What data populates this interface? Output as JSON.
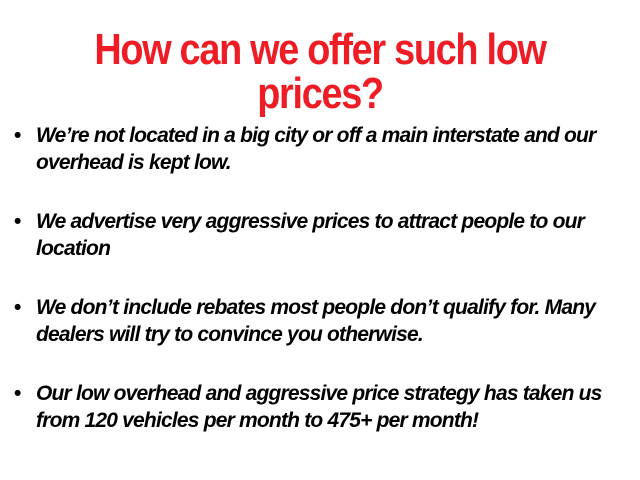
{
  "title": "How can we offer such low prices?",
  "bullets": [
    "We’re not located in a big city or off a main interstate and our overhead is kept low.",
    "We advertise very aggressive prices to attract people to our location",
    "We don’t include rebates most people don’t qualify for. Many dealers will try to convince you otherwise.",
    "Our low overhead and aggressive price strategy has taken us from 120 vehicles per month to 475+ per month!"
  ],
  "bullet_glyph": "•",
  "colors": {
    "title": "#ee1c25",
    "text": "#000000"
  }
}
